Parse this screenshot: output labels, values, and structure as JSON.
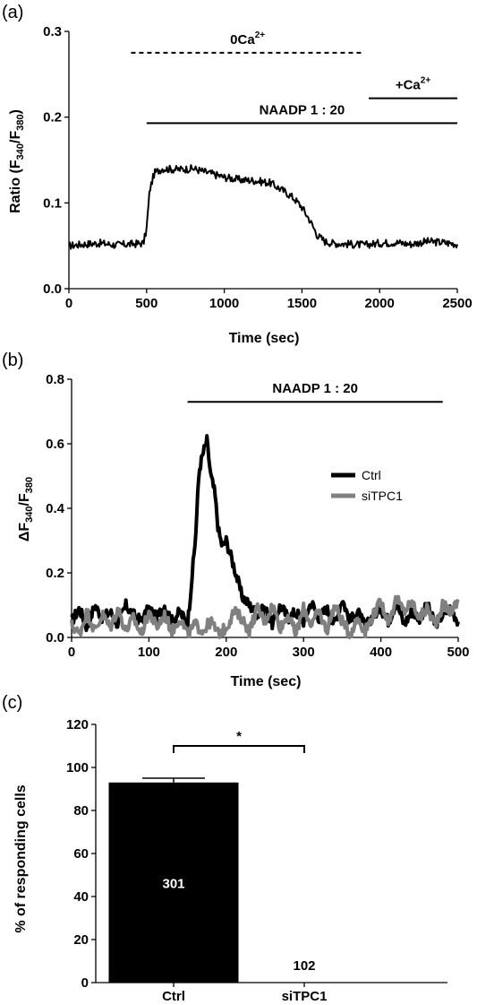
{
  "chart_data": [
    {
      "panel": "(a)",
      "type": "line",
      "xlabel": "Time (sec)",
      "ylabel": "Ratio (F340/F380)",
      "ylabel_parts": {
        "main": "Ratio (F",
        "sub1": "340",
        "slash": "/F",
        "sub2": "380",
        "end": ")"
      },
      "xlim": [
        0,
        2500
      ],
      "ylim": [
        0,
        0.3
      ],
      "xticks": [
        "0",
        "500",
        "1000",
        "1500",
        "2000",
        "2500"
      ],
      "yticks": [
        "0.0",
        "0.1",
        "0.2",
        "0.3"
      ],
      "xtick_values": [
        0,
        500,
        1000,
        1500,
        2000,
        2500
      ],
      "ytick_values": [
        0,
        0.1,
        0.2,
        0.3
      ],
      "series": [
        {
          "color": "#000000",
          "x": [
            0,
            100,
            200,
            300,
            400,
            480,
            500,
            520,
            550,
            600,
            700,
            800,
            900,
            1000,
            1100,
            1200,
            1300,
            1400,
            1450,
            1500,
            1550,
            1600,
            1650,
            1700,
            1800,
            1900,
            2000,
            2100,
            2200,
            2300,
            2400,
            2500
          ],
          "y": [
            0.05,
            0.052,
            0.053,
            0.051,
            0.052,
            0.053,
            0.07,
            0.115,
            0.135,
            0.14,
            0.139,
            0.14,
            0.135,
            0.13,
            0.127,
            0.126,
            0.123,
            0.112,
            0.105,
            0.095,
            0.08,
            0.062,
            0.055,
            0.053,
            0.052,
            0.051,
            0.053,
            0.054,
            0.052,
            0.055,
            0.054,
            0.052
          ]
        }
      ],
      "annotations": [
        {
          "text": "0Ca",
          "sup": "2+",
          "x_start": 400,
          "x_end": 1900,
          "y": 0.275,
          "style": "dashed"
        },
        {
          "text": "+Ca",
          "sup": "2+",
          "x_start": 1930,
          "x_end": 2500,
          "y": 0.222,
          "style": "solid"
        },
        {
          "text": "NAADP 1 : 20",
          "x_start": 500,
          "x_end": 2500,
          "y": 0.193,
          "style": "solid"
        }
      ]
    },
    {
      "panel": "(b)",
      "type": "line",
      "xlabel": "Time (sec)",
      "ylabel": "ΔF340/F380",
      "ylabel_parts": {
        "main": "ΔF",
        "sub1": "340",
        "slash": "/F",
        "sub2": "380"
      },
      "xlim": [
        0,
        500
      ],
      "ylim": [
        0,
        0.8
      ],
      "xticks": [
        "0",
        "100",
        "200",
        "300",
        "400",
        "500"
      ],
      "yticks": [
        "0.0",
        "0.2",
        "0.4",
        "0.6",
        "0.8"
      ],
      "xtick_values": [
        0,
        100,
        200,
        300,
        400,
        500
      ],
      "ytick_values": [
        0,
        0.2,
        0.4,
        0.6,
        0.8
      ],
      "annotations": [
        {
          "text": "NAADP  1 : 20",
          "x_start": 150,
          "x_end": 480,
          "y": 0.73,
          "style": "solid"
        }
      ],
      "legend": "right",
      "series": [
        {
          "name": "Ctrl",
          "color": "#000000",
          "x": [
            0,
            10,
            20,
            30,
            40,
            50,
            60,
            70,
            80,
            90,
            100,
            110,
            120,
            130,
            140,
            150,
            160,
            165,
            170,
            175,
            180,
            185,
            190,
            195,
            200,
            210,
            220,
            230,
            240,
            250,
            260,
            270,
            280,
            290,
            300,
            310,
            320,
            330,
            340,
            350,
            360,
            370,
            380,
            390,
            400,
            410,
            420,
            430,
            440,
            450,
            460,
            470,
            480,
            490,
            500
          ],
          "y": [
            0.05,
            0.09,
            0.03,
            0.1,
            0.06,
            0.08,
            0.04,
            0.1,
            0.07,
            0.05,
            0.09,
            0.06,
            0.1,
            0.05,
            0.08,
            0.04,
            0.3,
            0.52,
            0.57,
            0.61,
            0.5,
            0.45,
            0.33,
            0.28,
            0.3,
            0.22,
            0.13,
            0.1,
            0.07,
            0.09,
            0.04,
            0.1,
            0.06,
            0.08,
            0.05,
            0.11,
            0.06,
            0.09,
            0.04,
            0.12,
            0.05,
            0.08,
            0.03,
            0.07,
            0.09,
            0.05,
            0.11,
            0.04,
            0.08,
            0.06,
            0.1,
            0.04,
            0.07,
            0.09,
            0.05
          ]
        },
        {
          "name": "siTPC1",
          "color": "#808080",
          "x": [
            0,
            10,
            20,
            30,
            40,
            50,
            60,
            70,
            80,
            90,
            100,
            110,
            120,
            130,
            140,
            150,
            160,
            170,
            180,
            190,
            200,
            210,
            220,
            230,
            240,
            250,
            260,
            270,
            280,
            290,
            300,
            310,
            320,
            330,
            340,
            350,
            360,
            370,
            380,
            390,
            400,
            410,
            420,
            430,
            440,
            450,
            460,
            470,
            480,
            490,
            500
          ],
          "y": [
            0.04,
            0.01,
            0.08,
            0.02,
            0.07,
            0.03,
            0.09,
            0.02,
            0.06,
            0.01,
            0.08,
            0.03,
            0.07,
            0.02,
            0.06,
            0.01,
            0.04,
            0.02,
            0.05,
            0.01,
            0.03,
            0.08,
            0.06,
            0.02,
            0.09,
            0.05,
            0.1,
            0.03,
            0.07,
            0.01,
            0.09,
            0.04,
            0.08,
            0.02,
            0.1,
            0.05,
            0.01,
            0.06,
            0.02,
            0.07,
            0.11,
            0.05,
            0.12,
            0.08,
            0.11,
            0.06,
            0.09,
            0.04,
            0.1,
            0.08,
            0.11
          ]
        }
      ]
    },
    {
      "panel": "(c)",
      "type": "bar",
      "ylabel": "% of responding cells",
      "ylim": [
        0,
        120
      ],
      "yticks": [
        "0",
        "20",
        "40",
        "60",
        "80",
        "100",
        "120"
      ],
      "ytick_values": [
        0,
        20,
        40,
        60,
        80,
        100,
        120
      ],
      "categories": [
        "Ctrl",
        "siTPC1"
      ],
      "values": [
        93,
        0
      ],
      "errors": [
        2,
        0
      ],
      "bar_labels": [
        "301",
        "102"
      ],
      "significance": "*",
      "colors": [
        "#000000",
        "#000000"
      ]
    }
  ]
}
